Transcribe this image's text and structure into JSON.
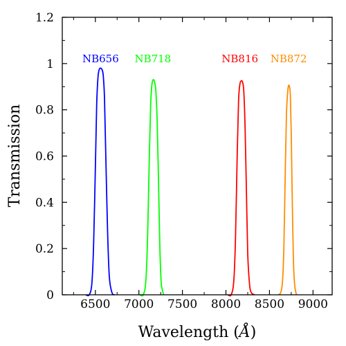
{
  "chart_data": {
    "type": "line",
    "title": "",
    "xlabel": "Wavelength (Å)",
    "ylabel": "Transmission",
    "xlim": [
      6120,
      9220
    ],
    "ylim": [
      0,
      1.2
    ],
    "x_ticks": [
      6500,
      7000,
      7500,
      8000,
      8500,
      9000
    ],
    "x_tick_labels": [
      "6500",
      "7000",
      "7500",
      "8000",
      "8500",
      "9000"
    ],
    "y_ticks": [
      0,
      0.2,
      0.4,
      0.6,
      0.8,
      1,
      1.2
    ],
    "y_tick_labels": [
      "0",
      "0.2",
      "0.4",
      "0.6",
      "0.8",
      "1",
      "1.2"
    ],
    "grid": false,
    "legend": "labels above each curve",
    "series": [
      {
        "name": "NB656",
        "color": "#0000ff",
        "x": [
          6390,
          6430,
          6460,
          6480,
          6500,
          6515,
          6530,
          6545,
          6560,
          6575,
          6590,
          6605,
          6620,
          6640,
          6660,
          6690,
          6720
        ],
        "y": [
          0,
          0.0,
          0.05,
          0.22,
          0.55,
          0.82,
          0.94,
          0.975,
          0.98,
          0.975,
          0.95,
          0.85,
          0.6,
          0.28,
          0.08,
          0.01,
          0
        ]
      },
      {
        "name": "NB718",
        "color": "#00ff00",
        "x": [
          7010,
          7050,
          7080,
          7100,
          7120,
          7135,
          7150,
          7165,
          7180,
          7195,
          7210,
          7225,
          7240,
          7255,
          7270,
          7285
        ],
        "y": [
          0,
          0.0,
          0.06,
          0.25,
          0.6,
          0.82,
          0.91,
          0.93,
          0.92,
          0.88,
          0.75,
          0.5,
          0.22,
          0.06,
          0.02,
          0
        ]
      },
      {
        "name": "NB816",
        "color": "#ff0000",
        "x": [
          8020,
          8060,
          8090,
          8110,
          8130,
          8145,
          8160,
          8175,
          8190,
          8205,
          8220,
          8235,
          8250,
          8270,
          8290,
          8330
        ],
        "y": [
          0,
          0.0,
          0.06,
          0.25,
          0.62,
          0.84,
          0.91,
          0.925,
          0.92,
          0.88,
          0.72,
          0.45,
          0.18,
          0.05,
          0.01,
          0
        ]
      },
      {
        "name": "NB872",
        "color": "#ff8c00",
        "x": [
          8600,
          8630,
          8650,
          8665,
          8680,
          8695,
          8710,
          8720,
          8730,
          8740,
          8750,
          8760,
          8775,
          8790,
          8810
        ],
        "y": [
          0,
          0.01,
          0.06,
          0.2,
          0.5,
          0.78,
          0.88,
          0.905,
          0.9,
          0.86,
          0.7,
          0.45,
          0.15,
          0.04,
          0
        ]
      }
    ],
    "series_label_positions": [
      {
        "name": "NB656",
        "x": 6560,
        "y": 1.02
      },
      {
        "name": "NB718",
        "x": 7160,
        "y": 1.02
      },
      {
        "name": "NB816",
        "x": 8160,
        "y": 1.02
      },
      {
        "name": "NB872",
        "x": 8720,
        "y": 1.02
      }
    ]
  }
}
